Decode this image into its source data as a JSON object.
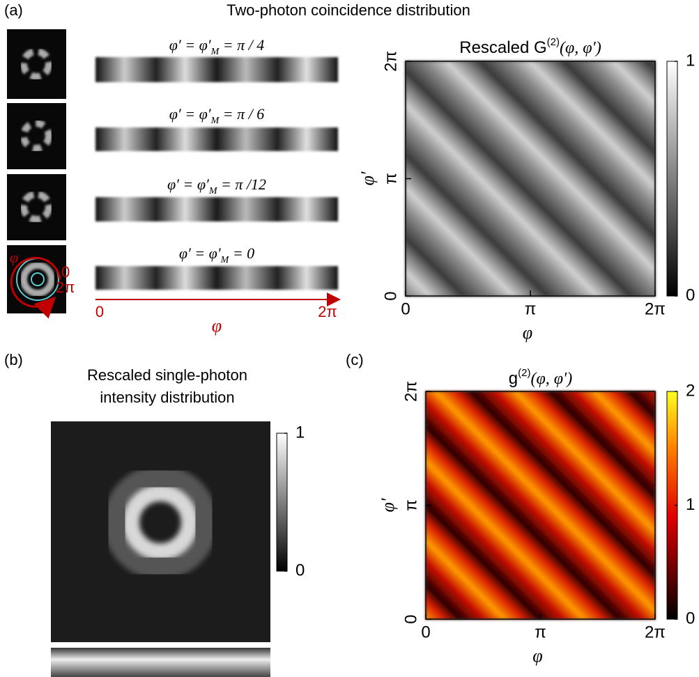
{
  "panel_a": {
    "label": "(a)",
    "title": "Two-photon coincidence distribution",
    "slices": [
      {
        "lhs": "φ′ = φ′",
        "sub": "M",
        "rhs": " = π / 4"
      },
      {
        "lhs": "φ′ = φ′",
        "sub": "M",
        "rhs": " = π / 6"
      },
      {
        "lhs": "φ′ = φ′",
        "sub": "M",
        "rhs": " = π /12"
      },
      {
        "lhs": "φ′ = φ′",
        "sub": "M",
        "rhs": " = 0"
      }
    ],
    "ring": {
      "phi": "φ",
      "start": "0",
      "end": "2π"
    },
    "strip_axis": {
      "start": "0",
      "end": "2π",
      "label": "φ"
    },
    "heatmap": {
      "type": "heatmap",
      "title_main": "Rescaled G",
      "title_sup": "(2)",
      "title_args": "(φ, φ′)",
      "xlabel": "φ",
      "ylabel": "φ′",
      "xlim": [
        0,
        6.2832
      ],
      "ylim": [
        0,
        6.2832
      ],
      "xticks": [
        0,
        {
          "value": 3.1416,
          "label": "π"
        },
        {
          "value": 6.2832,
          "label": "2π"
        }
      ],
      "yticks": [
        0,
        {
          "value": 3.1416,
          "label": "π"
        },
        {
          "value": 6.2832,
          "label": "2π"
        }
      ],
      "colorbar": {
        "lim": [
          0,
          1
        ],
        "ticks": [
          0,
          1
        ]
      }
    }
  },
  "panel_b": {
    "label": "(b)",
    "title_lines": [
      "Rescaled single-photon",
      "intensity distribution"
    ],
    "colorbar": {
      "lim": [
        0,
        1
      ],
      "ticks": [
        0,
        1
      ]
    }
  },
  "panel_c": {
    "label": "(c)",
    "heatmap": {
      "type": "heatmap",
      "title_main": "g",
      "title_sup": "(2)",
      "title_args": "(φ, φ′)",
      "xlabel": "φ",
      "ylabel": "φ′",
      "xlim": [
        0,
        6.2832
      ],
      "ylim": [
        0,
        6.2832
      ],
      "xticks": [
        0,
        {
          "value": 3.1416,
          "label": "π"
        },
        {
          "value": 6.2832,
          "label": "2π"
        }
      ],
      "yticks": [
        0,
        {
          "value": 3.1416,
          "label": "π"
        },
        {
          "value": 6.2832,
          "label": "2π"
        }
      ],
      "colorbar": {
        "lim": [
          0,
          2
        ],
        "ticks": [
          0,
          1,
          2
        ]
      }
    }
  }
}
